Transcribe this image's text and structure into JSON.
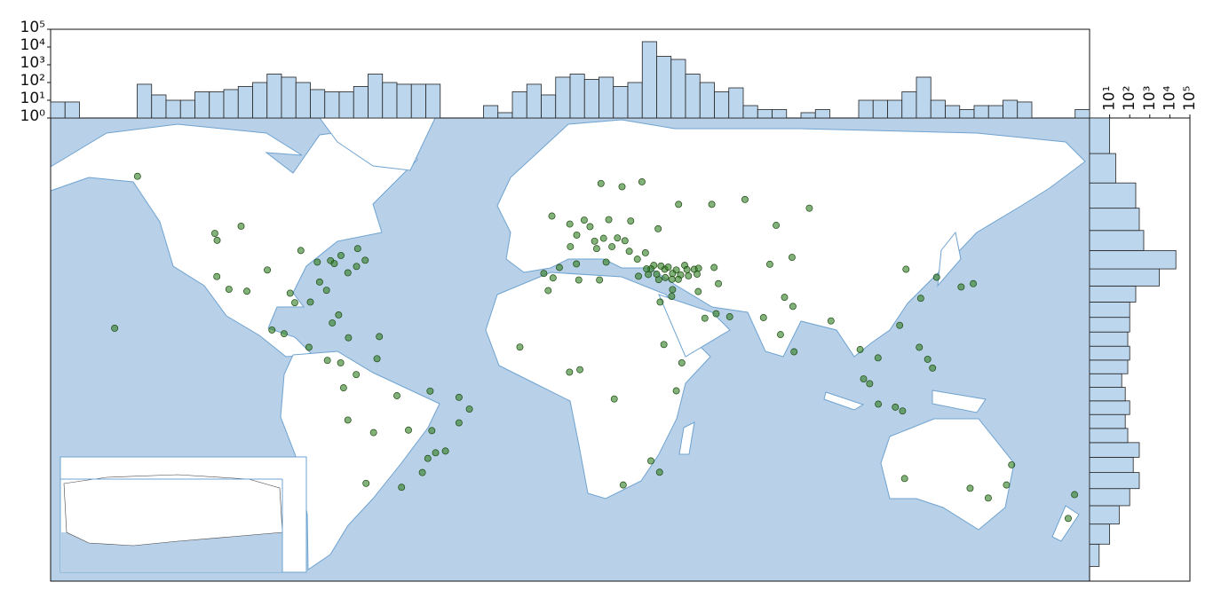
{
  "chart_data": [
    {
      "type": "histogram",
      "orientation": "vertical",
      "log_scale": true,
      "color": "#bcd6ee",
      "bins": [
        -180,
        -175,
        -170,
        -165,
        -160,
        -155,
        -150,
        -145,
        -140,
        -135,
        -130,
        -125,
        -120,
        -115,
        -110,
        -105,
        -100,
        -95,
        -90,
        -85,
        -80,
        -75,
        -70,
        -65,
        -60,
        -55,
        -50,
        -45,
        -40,
        -35,
        -30,
        -25,
        -20,
        -15,
        -10,
        -5,
        0,
        5,
        10,
        15,
        20,
        25,
        30,
        35,
        40,
        45,
        50,
        55,
        60,
        65,
        70,
        75,
        80,
        85,
        90,
        95,
        100,
        105,
        110,
        115,
        120,
        125,
        130,
        135,
        140,
        145,
        150,
        155,
        160,
        165,
        170,
        175,
        180
      ],
      "values": [
        8,
        8,
        0,
        0,
        0,
        0,
        80,
        20,
        10,
        10,
        30,
        30,
        40,
        60,
        100,
        300,
        200,
        100,
        40,
        30,
        30,
        60,
        300,
        100,
        80,
        80,
        80,
        0,
        0,
        0,
        5,
        2,
        30,
        80,
        20,
        200,
        300,
        150,
        200,
        60,
        100,
        20000,
        3000,
        2000,
        300,
        100,
        30,
        50,
        5,
        3,
        3,
        0,
        2,
        3,
        0,
        0,
        10,
        10,
        10,
        30,
        200,
        10,
        5,
        3,
        5,
        5,
        10,
        8,
        0,
        0,
        0,
        3
      ],
      "xlim": [
        -180,
        180
      ],
      "ylim": [
        1,
        100000
      ],
      "yticks": [
        {
          "value": 1,
          "label": "10⁰"
        },
        {
          "value": 10,
          "label": "10¹"
        },
        {
          "value": 100,
          "label": "10²"
        },
        {
          "value": 1000,
          "label": "10³"
        },
        {
          "value": 10000,
          "label": "10⁴"
        },
        {
          "value": 100000,
          "label": "10⁵"
        }
      ]
    },
    {
      "type": "histogram",
      "orientation": "horizontal",
      "log_scale": true,
      "projection": "mercator",
      "color": "#bcd6ee",
      "bins": [
        -55,
        -50,
        -45,
        -40,
        -35,
        -30,
        -25,
        -20,
        -15,
        -10,
        -5,
        0,
        5,
        10,
        15,
        20,
        25,
        30,
        35,
        40,
        45,
        50,
        55,
        60,
        65,
        70
      ],
      "values": [
        3,
        10,
        30,
        100,
        300,
        150,
        300,
        80,
        60,
        100,
        60,
        40,
        80,
        100,
        80,
        100,
        100,
        200,
        3000,
        20000,
        500,
        300,
        200,
        20,
        10
      ],
      "xlim": [
        1,
        100000
      ],
      "ylim": [
        -58,
        70
      ],
      "xticks": [
        {
          "value": 10,
          "label": "10¹"
        },
        {
          "value": 100,
          "label": "10²"
        },
        {
          "value": 1000,
          "label": "10³"
        },
        {
          "value": 10000,
          "label": "10⁴"
        },
        {
          "value": 100000,
          "label": "10⁵"
        }
      ]
    },
    {
      "type": "scatter",
      "projection": "mercator",
      "color": "#2e7d1f",
      "xlim": [
        -180,
        180
      ],
      "ylim": [
        -58,
        70
      ],
      "x": [
        29,
        32.8,
        27.1,
        35.3,
        30.7,
        36.8,
        39.7,
        43,
        38.3,
        34,
        41,
        28,
        33,
        37.5,
        40.5,
        31.5,
        26.5,
        30,
        35.5,
        44,
        -3.7,
        2.3,
        -0.1,
        13.4,
        12.5,
        9.2,
        4.9,
        -9.1,
        2.2,
        16.4,
        21,
        19,
        23.7,
        26.1,
        23.3,
        18,
        10.7,
        24.9,
        37.6,
        30.5,
        -6.3,
        8.5,
        11.6,
        6.9,
        -5.9,
        0.1,
        14.5,
        20.5,
        44.4,
        51.4,
        46.7,
        55.3,
        35.5,
        31.2,
        35.2,
        50.6,
        -74,
        -87.6,
        -118.2,
        -122.4,
        -95.4,
        -80.2,
        -84.4,
        -77,
        -71,
        -79.4,
        -73.6,
        -97,
        -104.9,
        -112,
        -122.3,
        -93.3,
        -90,
        -99.1,
        -103.3,
        -83,
        -81.7,
        -86.8,
        -123.1,
        -114,
        -149.9,
        -157.8,
        -66.1,
        -76.8,
        -82.4,
        -90.5,
        -84.1,
        -79.5,
        -46.6,
        -43.2,
        -47.9,
        -38.5,
        -34.9,
        -38.5,
        -49.3,
        -51.2,
        -58.4,
        -70.7,
        -77,
        -74.1,
        -66.9,
        -78.5,
        -60,
        -48.5,
        -56,
        -68.1,
        3.4,
        -17.4,
        36.8,
        28,
        18.4,
        31,
        32.5,
        -7.6,
        10.2,
        3,
        38.7,
        -0.2,
        15.3,
        77.2,
        72.9,
        77.6,
        116.4,
        121.5,
        114.2,
        139.7,
        135.5,
        127,
        103.8,
        101.7,
        106.8,
        100.5,
        106.7,
        121,
        123.9,
        125.6,
        112.7,
        115.2,
        67,
        74.3,
        90.4,
        69.2,
        76.9,
        71.4,
        82.9,
        60.6,
        49.1,
        44.5,
        49.9,
        151.2,
        144.9,
        153,
        115.9,
        138.6,
        174.8,
        172.6
      ],
      "y": [
        41,
        39.9,
        38.4,
        37,
        36.9,
        39.7,
        41,
        39.9,
        38.3,
        40.5,
        38,
        40,
        37.5,
        37,
        39.8,
        40.8,
        40,
        38.5,
        38.7,
        38.5,
        40.4,
        48.9,
        51.5,
        52.5,
        41.9,
        45.5,
        52.4,
        38.7,
        41.4,
        48.2,
        52.2,
        47.5,
        37.9,
        44.4,
        42.7,
        59.3,
        59.9,
        60.2,
        55.8,
        50.4,
        53.3,
        47.4,
        48.1,
        50.9,
        37.4,
        46,
        46,
        44.8,
        33.3,
        35.7,
        24.7,
        25.2,
        33.9,
        30,
        31.8,
        26.2,
        40.7,
        41.9,
        34,
        37.8,
        29.8,
        25.8,
        33.7,
        38.9,
        42.4,
        43.7,
        45.5,
        32.8,
        39.7,
        33.4,
        47.6,
        45,
        30,
        19.4,
        20.7,
        42.3,
        41.5,
        36.2,
        49.3,
        51,
        61.2,
        21.3,
        18.4,
        18,
        23.1,
        14.6,
        9.9,
        9,
        -23.5,
        -22.9,
        -15.8,
        -13,
        -8,
        -3.7,
        -25.4,
        -30,
        -34.6,
        -33.4,
        -12,
        4.7,
        10.5,
        -0.2,
        -3.1,
        -1.4,
        -15.6,
        -16.5,
        6.5,
        14.7,
        -1.3,
        -26.2,
        -33.9,
        -29.9,
        15.6,
        33.6,
        36.8,
        36.8,
        9,
        5.6,
        -4.3,
        28.6,
        19.1,
        13,
        39.9,
        31.2,
        22.3,
        35.7,
        34.7,
        37.6,
        1.35,
        3.1,
        -6.2,
        13.8,
        10.8,
        14.6,
        10.3,
        7.1,
        -7.3,
        -8.7,
        24.9,
        31.5,
        23.8,
        41.3,
        43.2,
        51.2,
        55,
        56.8,
        55.8,
        40.2,
        40.4,
        -33.9,
        -37.8,
        -27.5,
        -31.9,
        -34.9,
        -36.8,
        -43.5
      ]
    }
  ]
}
